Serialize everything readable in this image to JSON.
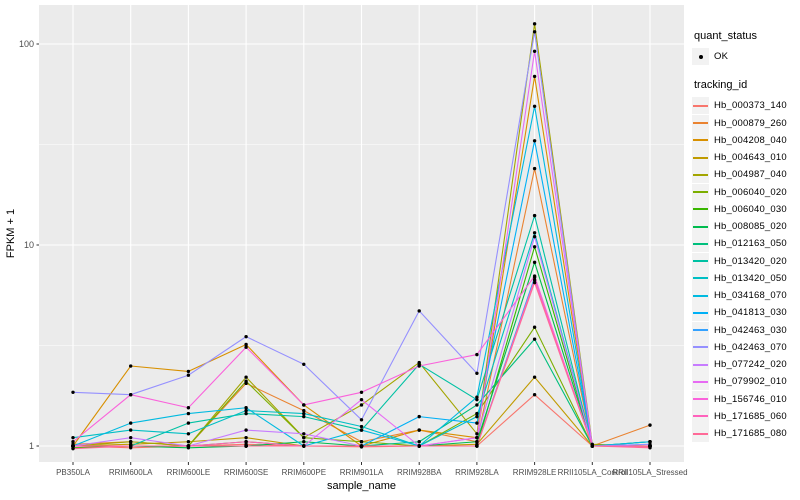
{
  "figure": {
    "background": "#FFFFFF",
    "panel_background": "#EBEBEB",
    "gridline_color": "#FFFFFF",
    "tick_color": "#333333",
    "tick_label_color": "#4D4D4D",
    "axis_title_color": "#000000",
    "point_color": "#000000"
  },
  "axes": {
    "x_title": "sample_name",
    "y_title": "FPKM + 1",
    "y_tick_labels": [
      "1",
      "10",
      "100"
    ],
    "y_scale": "log10"
  },
  "legend": {
    "quant_status_title": "quant_status",
    "quant_status_items": [
      {
        "label": "OK",
        "symbol": "point"
      }
    ],
    "tracking_id_title": "tracking_id",
    "key_background": "#F2F2F2"
  },
  "chart_data": {
    "type": "line",
    "title": "",
    "xlabel": "sample_name",
    "ylabel": "FPKM + 1",
    "y_scale": "log10",
    "ylim": [
      0.82,
      158
    ],
    "y_tick_values": [
      1,
      10,
      100
    ],
    "y_minor_tick_values": [
      3.162,
      31.62
    ],
    "grid": true,
    "legend_position": "right",
    "point_marker": "black-dot",
    "categories": [
      "PB350LA",
      "RRIM600LA",
      "RRIM600LE",
      "RRIM600SE",
      "RRIM600PE",
      "RRIM901LA",
      "RRIM928BA",
      "RRIM928LA",
      "RRIM928LE",
      "RRII105LA_Control",
      "RRII105LA_Stressed"
    ],
    "series": [
      {
        "name": "Hb_000373_140",
        "color": "#F8766D",
        "values": [
          1.0,
          0.98,
          1.0,
          1.02,
          1.0,
          0.99,
          1.0,
          1.0,
          1.8,
          1.0,
          0.99
        ]
      },
      {
        "name": "Hb_000879_260",
        "color": "#EA8331",
        "values": [
          1.02,
          1.05,
          1.0,
          2.05,
          1.5,
          1.05,
          1.2,
          1.05,
          24.0,
          1.0,
          1.27
        ]
      },
      {
        "name": "Hb_004208_040",
        "color": "#D89000",
        "values": [
          1.0,
          2.5,
          2.35,
          3.2,
          1.6,
          1.0,
          1.2,
          1.1,
          69.0,
          1.0,
          1.0
        ]
      },
      {
        "name": "Hb_004643_010",
        "color": "#C09B00",
        "values": [
          1.0,
          1.02,
          1.05,
          1.1,
          1.0,
          1.0,
          1.0,
          1.02,
          2.2,
          1.0,
          1.0
        ]
      },
      {
        "name": "Hb_004987_040",
        "color": "#A3A500",
        "values": [
          1.0,
          1.05,
          1.0,
          2.2,
          1.1,
          1.6,
          2.6,
          1.15,
          126.0,
          1.02,
          1.0
        ]
      },
      {
        "name": "Hb_006040_020",
        "color": "#7CAE00",
        "values": [
          1.0,
          1.0,
          1.0,
          2.1,
          1.1,
          1.05,
          1.0,
          1.45,
          3.9,
          1.0,
          1.05
        ]
      },
      {
        "name": "Hb_006040_030",
        "color": "#39B600",
        "values": [
          0.98,
          1.0,
          1.0,
          1.05,
          1.0,
          1.0,
          1.0,
          1.0,
          9.8,
          1.0,
          1.0
        ]
      },
      {
        "name": "Hb_008085_020",
        "color": "#00BB4E",
        "values": [
          1.0,
          1.0,
          0.98,
          1.0,
          1.05,
          1.0,
          1.0,
          1.05,
          8.2,
          1.0,
          1.0
        ]
      },
      {
        "name": "Hb_012163_050",
        "color": "#00BF7D",
        "values": [
          1.0,
          1.0,
          1.0,
          1.0,
          1.0,
          1.0,
          1.05,
          1.6,
          3.4,
          1.0,
          1.0
        ]
      },
      {
        "name": "Hb_013420_020",
        "color": "#00C1A3",
        "values": [
          1.0,
          1.0,
          1.3,
          1.45,
          1.4,
          1.2,
          2.55,
          1.7,
          14.0,
          1.0,
          1.0
        ]
      },
      {
        "name": "Hb_013420_050",
        "color": "#00BFC4",
        "values": [
          1.1,
          1.2,
          1.15,
          1.5,
          1.45,
          1.25,
          1.0,
          1.4,
          11.5,
          1.0,
          1.05
        ]
      },
      {
        "name": "Hb_034168_070",
        "color": "#00BAE0",
        "values": [
          1.0,
          1.3,
          1.45,
          1.55,
          1.0,
          1.2,
          1.0,
          1.75,
          49.0,
          1.0,
          1.05
        ]
      },
      {
        "name": "Hb_041813_030",
        "color": "#00B0F6",
        "values": [
          1.0,
          1.0,
          1.0,
          1.0,
          1.0,
          1.0,
          1.4,
          1.3,
          33.0,
          1.0,
          1.0
        ]
      },
      {
        "name": "Hb_042463_030",
        "color": "#35A2FF",
        "values": [
          1.0,
          1.0,
          1.0,
          1.0,
          1.0,
          1.0,
          1.0,
          1.0,
          6.9,
          1.0,
          1.0
        ]
      },
      {
        "name": "Hb_042463_070",
        "color": "#9590FF",
        "values": [
          1.85,
          1.8,
          2.25,
          3.5,
          2.55,
          1.35,
          4.7,
          2.3,
          115.0,
          1.0,
          1.02
        ]
      },
      {
        "name": "Hb_077242_020",
        "color": "#C77CFF",
        "values": [
          1.0,
          1.1,
          1.0,
          1.2,
          1.15,
          1.0,
          1.0,
          1.1,
          11.0,
          1.0,
          1.0
        ]
      },
      {
        "name": "Hb_079902_010",
        "color": "#E76BF3",
        "values": [
          1.0,
          1.0,
          1.0,
          1.0,
          1.0,
          1.7,
          1.0,
          1.1,
          92.0,
          1.0,
          1.0
        ]
      },
      {
        "name": "Hb_156746_010",
        "color": "#FA62DB",
        "values": [
          1.05,
          1.8,
          1.55,
          3.1,
          1.6,
          1.85,
          2.5,
          2.85,
          7.0,
          1.0,
          1.0
        ]
      },
      {
        "name": "Hb_171685_060",
        "color": "#FF62BC",
        "values": [
          1.0,
          1.0,
          1.0,
          1.05,
          1.0,
          1.0,
          1.0,
          1.0,
          6.7,
          1.0,
          1.0
        ]
      },
      {
        "name": "Hb_171685_080",
        "color": "#FF6A98",
        "values": [
          0.97,
          1.0,
          1.0,
          1.0,
          1.0,
          1.0,
          1.0,
          1.0,
          6.5,
          1.0,
          0.98
        ]
      }
    ]
  }
}
